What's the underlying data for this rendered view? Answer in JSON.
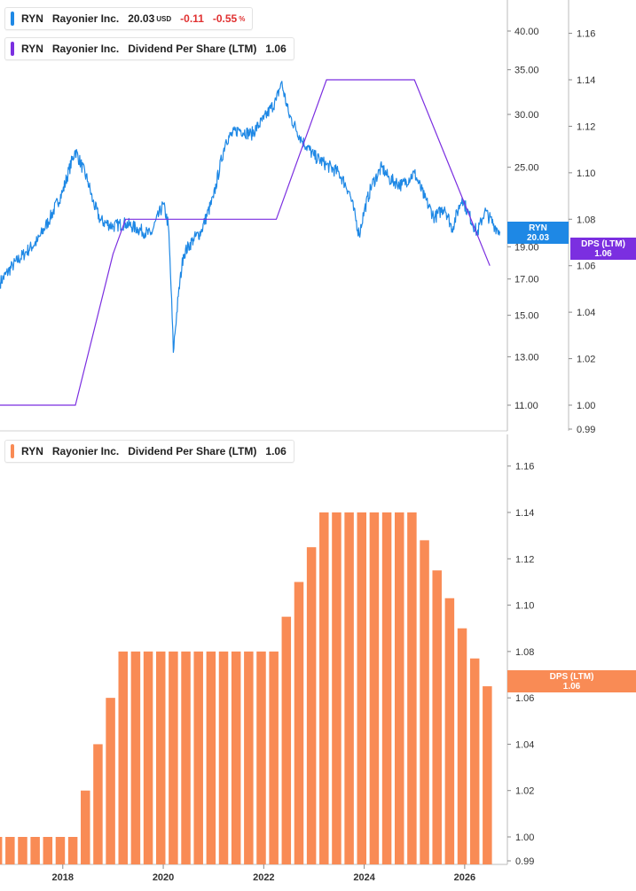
{
  "legend_price": {
    "ticker": "RYN",
    "name": "Rayonier Inc.",
    "price": "20.03",
    "currency": "USD",
    "change": "-0.11",
    "change_pct": "-0.55",
    "pct_sign": "%",
    "color": "#1e88e5"
  },
  "legend_dps_top": {
    "ticker": "RYN",
    "name": "Rayonier Inc.",
    "metric": "Dividend Per Share (LTM)",
    "value": "1.06",
    "color": "#7b2fe0"
  },
  "legend_dps_bottom": {
    "ticker": "RYN",
    "name": "Rayonier Inc.",
    "metric": "Dividend Per Share (LTM)",
    "value": "1.06",
    "color": "#f98b55"
  },
  "tags": {
    "price": {
      "label": "RYN",
      "value": "20.03"
    },
    "dps_top": {
      "label": "DPS (LTM)",
      "value": "1.06"
    },
    "dps_bottom": {
      "label": "DPS (LTM)",
      "value": "1.06"
    }
  },
  "chart_data": [
    {
      "type": "line",
      "series": [
        {
          "name": "RYN",
          "axis": "price-log",
          "color": "#1e88e5",
          "x": [
            2016.75,
            2017.0,
            2017.25,
            2017.5,
            2017.75,
            2018.0,
            2018.25,
            2018.5,
            2018.6,
            2018.75,
            2019.0,
            2019.25,
            2019.5,
            2019.75,
            2020.0,
            2020.1,
            2020.2,
            2020.3,
            2020.4,
            2020.6,
            2020.75,
            2021.0,
            2021.25,
            2021.5,
            2021.75,
            2022.0,
            2022.25,
            2022.35,
            2022.5,
            2022.75,
            2023.0,
            2023.25,
            2023.5,
            2023.7,
            2023.9,
            2024.0,
            2024.15,
            2024.35,
            2024.5,
            2024.75,
            2025.0,
            2025.2,
            2025.4,
            2025.6,
            2025.75,
            2025.95,
            2026.05,
            2026.25,
            2026.4,
            2026.6,
            2026.7
          ],
          "y": [
            16.8,
            17.8,
            18.6,
            19.4,
            21.0,
            23.0,
            26.5,
            23.8,
            22.2,
            20.8,
            20.4,
            20.6,
            20.2,
            19.8,
            22.0,
            20.5,
            13.2,
            16.0,
            18.5,
            19.5,
            20.0,
            22.5,
            27.5,
            28.5,
            28.0,
            29.5,
            31.5,
            33.5,
            30.0,
            27.5,
            26.0,
            25.2,
            24.5,
            23.0,
            19.8,
            21.5,
            23.5,
            25.0,
            24.0,
            23.5,
            24.5,
            22.5,
            21.0,
            21.8,
            20.2,
            22.5,
            21.5,
            19.9,
            21.5,
            20.4,
            20.03
          ]
        },
        {
          "name": "DPS (LTM)",
          "axis": "dps",
          "color": "#7b2fe0",
          "x": [
            2016.75,
            2018.25,
            2019.0,
            2019.25,
            2022.25,
            2023.25,
            2025.0,
            2026.5
          ],
          "y": [
            1.0,
            1.0,
            1.065,
            1.08,
            1.08,
            1.14,
            1.14,
            1.06
          ]
        }
      ],
      "price_axis": {
        "scale": "log",
        "ticks": [
          "11.00",
          "13.00",
          "15.00",
          "17.00",
          "19.00",
          "25.00",
          "30.00",
          "35.00",
          "40.00"
        ]
      },
      "dps_axis": {
        "ticks": [
          "0.99",
          "1.00",
          "1.02",
          "1.04",
          "1.06",
          "1.08",
          "1.10",
          "1.12",
          "1.14",
          "1.16"
        ]
      },
      "x_range": [
        2016.75,
        2026.85
      ]
    },
    {
      "type": "bar",
      "series": [
        {
          "name": "Dividend Per Share (LTM)",
          "color": "#f98b55",
          "x": [
            2016.7,
            2016.95,
            2017.2,
            2017.45,
            2017.7,
            2017.95,
            2018.2,
            2018.45,
            2018.7,
            2018.95,
            2019.2,
            2019.45,
            2019.7,
            2019.95,
            2020.2,
            2020.45,
            2020.7,
            2020.95,
            2021.2,
            2021.45,
            2021.7,
            2021.95,
            2022.2,
            2022.45,
            2022.7,
            2022.95,
            2023.2,
            2023.45,
            2023.7,
            2023.95,
            2024.2,
            2024.45,
            2024.7,
            2024.95,
            2025.2,
            2025.45,
            2025.7,
            2025.95,
            2026.2,
            2026.45
          ],
          "values": [
            1.0,
            1.0,
            1.0,
            1.0,
            1.0,
            1.0,
            1.0,
            1.02,
            1.04,
            1.06,
            1.08,
            1.08,
            1.08,
            1.08,
            1.08,
            1.08,
            1.08,
            1.08,
            1.08,
            1.08,
            1.08,
            1.08,
            1.08,
            1.095,
            1.11,
            1.125,
            1.14,
            1.14,
            1.14,
            1.14,
            1.14,
            1.14,
            1.14,
            1.14,
            1.128,
            1.115,
            1.103,
            1.09,
            1.077,
            1.065
          ]
        }
      ],
      "y_ticks": [
        "0.99",
        "1.00",
        "1.02",
        "1.04",
        "1.06",
        "1.08",
        "1.10",
        "1.12",
        "1.14",
        "1.16"
      ],
      "x_ticks": [
        "2018",
        "2020",
        "2022",
        "2024",
        "2026"
      ],
      "x_range": [
        2016.75,
        2026.85
      ]
    }
  ]
}
